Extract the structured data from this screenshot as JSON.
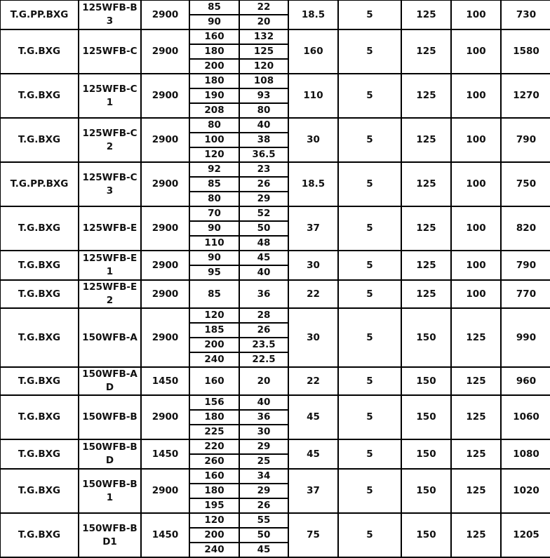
{
  "rows": [
    {
      "series": "T.G.PP.BXG",
      "model": "125WFB-B3",
      "speed": "2900",
      "points": [
        [
          "85",
          "22"
        ],
        [
          "90",
          "20"
        ]
      ],
      "c6": "18.5",
      "c7": "5",
      "c8": "125",
      "c9": "100",
      "c10": "730"
    },
    {
      "series": "T.G.BXG",
      "model": "125WFB-C",
      "speed": "2900",
      "points": [
        [
          "160",
          "132"
        ],
        [
          "180",
          "125"
        ],
        [
          "200",
          "120"
        ]
      ],
      "c6": "160",
      "c7": "5",
      "c8": "125",
      "c9": "100",
      "c10": "1580"
    },
    {
      "series": "T.G.BXG",
      "model": "125WFB-C1",
      "speed": "2900",
      "points": [
        [
          "180",
          "108"
        ],
        [
          "190",
          "93"
        ],
        [
          "208",
          "80"
        ]
      ],
      "c6": "110",
      "c7": "5",
      "c8": "125",
      "c9": "100",
      "c10": "1270"
    },
    {
      "series": "T.G.BXG",
      "model": "125WFB-C2",
      "speed": "2900",
      "points": [
        [
          "80",
          "40"
        ],
        [
          "100",
          "38"
        ],
        [
          "120",
          "36.5"
        ]
      ],
      "c6": "30",
      "c7": "5",
      "c8": "125",
      "c9": "100",
      "c10": "790"
    },
    {
      "series": "T.G.PP.BXG",
      "model": "125WFB-C3",
      "speed": "2900",
      "points": [
        [
          "92",
          "23"
        ],
        [
          "85",
          "26"
        ],
        [
          "80",
          "29"
        ]
      ],
      "c6": "18.5",
      "c7": "5",
      "c8": "125",
      "c9": "100",
      "c10": "750"
    },
    {
      "series": "T.G.BXG",
      "model": "125WFB-E",
      "speed": "2900",
      "points": [
        [
          "70",
          "52"
        ],
        [
          "90",
          "50"
        ],
        [
          "110",
          "48"
        ]
      ],
      "c6": "37",
      "c7": "5",
      "c8": "125",
      "c9": "100",
      "c10": "820"
    },
    {
      "series": "T.G.BXG",
      "model": "125WFB-E1",
      "speed": "2900",
      "points": [
        [
          "90",
          "45"
        ],
        [
          "95",
          "40"
        ]
      ],
      "c6": "30",
      "c7": "5",
      "c8": "125",
      "c9": "100",
      "c10": "790"
    },
    {
      "series": "T.G.BXG",
      "model": "125WFB-E2",
      "speed": "2900",
      "points": [
        [
          "85",
          "36"
        ]
      ],
      "c6": "22",
      "c7": "5",
      "c8": "125",
      "c9": "100",
      "c10": "770"
    },
    {
      "series": "T.G.BXG",
      "model": "150WFB-A",
      "speed": "2900",
      "points": [
        [
          "120",
          "28"
        ],
        [
          "185",
          "26"
        ],
        [
          "200",
          "23.5"
        ],
        [
          "240",
          "22.5"
        ]
      ],
      "c6": "30",
      "c7": "5",
      "c8": "150",
      "c9": "125",
      "c10": "990"
    },
    {
      "series": "T.G.BXG",
      "model": "150WFB-AD",
      "speed": "1450",
      "points": [
        [
          "160",
          "20"
        ]
      ],
      "c6": "22",
      "c7": "5",
      "c8": "150",
      "c9": "125",
      "c10": "960"
    },
    {
      "series": "T.G.BXG",
      "model": "150WFB-B",
      "speed": "2900",
      "points": [
        [
          "156",
          "40"
        ],
        [
          "180",
          "36"
        ],
        [
          "225",
          "30"
        ]
      ],
      "c6": "45",
      "c7": "5",
      "c8": "150",
      "c9": "125",
      "c10": "1060"
    },
    {
      "series": "T.G.BXG",
      "model": "150WFB-BD",
      "speed": "1450",
      "points": [
        [
          "220",
          "29"
        ],
        [
          "260",
          "25"
        ]
      ],
      "c6": "45",
      "c7": "5",
      "c8": "150",
      "c9": "125",
      "c10": "1080"
    },
    {
      "series": "T.G.BXG",
      "model": "150WFB-B1",
      "speed": "2900",
      "points": [
        [
          "160",
          "34"
        ],
        [
          "180",
          "29"
        ],
        [
          "195",
          "26"
        ]
      ],
      "c6": "37",
      "c7": "5",
      "c8": "150",
      "c9": "125",
      "c10": "1020"
    },
    {
      "series": "T.G.BXG",
      "model": "150WFB-BD1",
      "speed": "1450",
      "points": [
        [
          "120",
          "55"
        ],
        [
          "200",
          "50"
        ],
        [
          "240",
          "45"
        ]
      ],
      "c6": "75",
      "c7": "5",
      "c8": "150",
      "c9": "125",
      "c10": "1205"
    }
  ]
}
